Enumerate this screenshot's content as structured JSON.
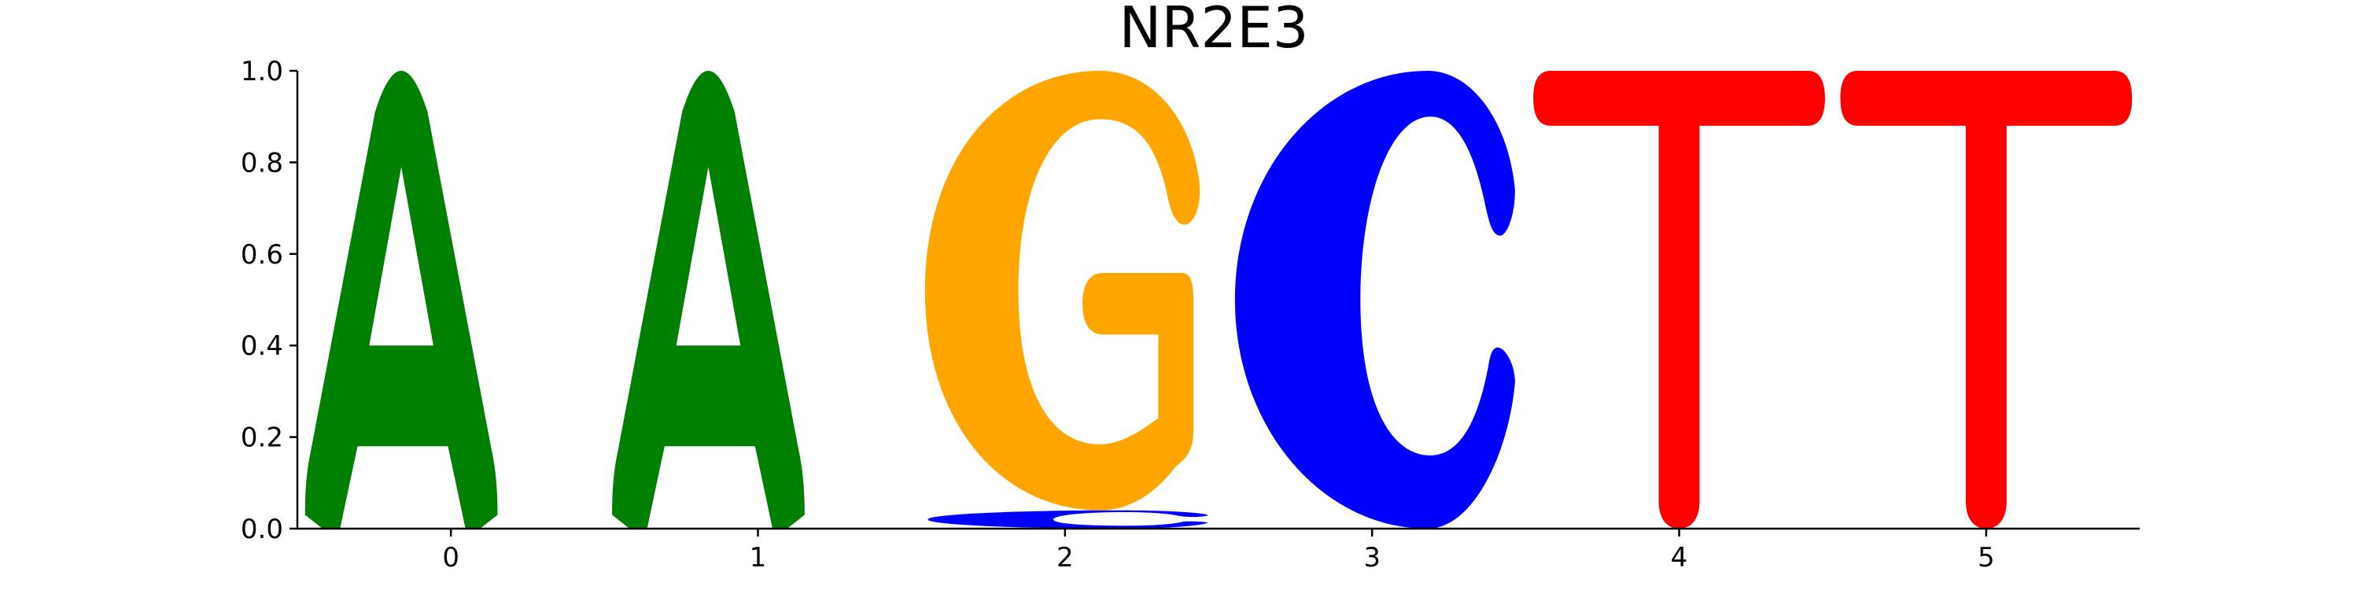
{
  "chart_data": {
    "type": "sequence-logo",
    "title": "NR2E3",
    "xlabel": "",
    "ylabel": "",
    "ylim": [
      0,
      1
    ],
    "xlim": [
      -0.5,
      5.5
    ],
    "grid": false,
    "legend": "none",
    "x_ticks": [
      "0",
      "1",
      "2",
      "3",
      "4",
      "5"
    ],
    "y_ticks": [
      "0.0",
      "0.2",
      "0.4",
      "0.6",
      "0.8",
      "1.0"
    ],
    "colors": {
      "A": "#008000",
      "C": "#0000ff",
      "G": "#ffa500",
      "T": "#ff0000"
    },
    "positions": [
      {
        "position": 0,
        "letters": [
          {
            "base": "A",
            "height": 1.0
          }
        ]
      },
      {
        "position": 1,
        "letters": [
          {
            "base": "A",
            "height": 1.0
          }
        ]
      },
      {
        "position": 2,
        "letters": [
          {
            "base": "C",
            "height": 0.04
          },
          {
            "base": "G",
            "height": 0.96
          }
        ]
      },
      {
        "position": 3,
        "letters": [
          {
            "base": "C",
            "height": 1.0
          }
        ]
      },
      {
        "position": 4,
        "letters": [
          {
            "base": "T",
            "height": 1.0
          }
        ]
      },
      {
        "position": 5,
        "letters": [
          {
            "base": "T",
            "height": 1.0
          }
        ]
      }
    ]
  }
}
